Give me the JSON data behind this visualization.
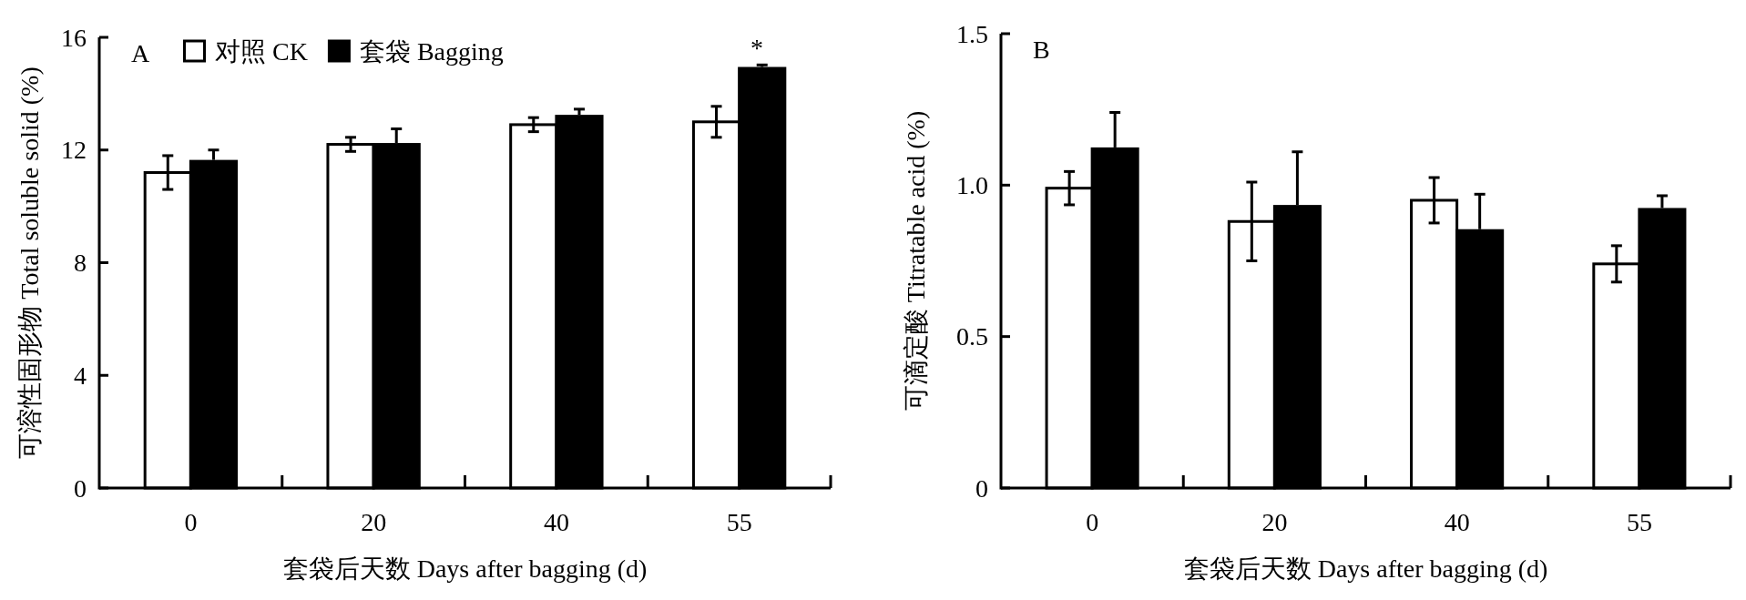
{
  "chart_data": [
    {
      "type": "bar",
      "title": "A",
      "xlabel": "套袋后天数 Days after bagging (d)",
      "ylabel": "可溶性固形物 Total soluble solid (%)",
      "categories": [
        "0",
        "20",
        "40",
        "55"
      ],
      "series": [
        {
          "name": "对照 CK",
          "color": "#ffffff",
          "values": [
            11.2,
            12.2,
            12.9,
            13.0
          ],
          "errors": [
            0.6,
            0.25,
            0.25,
            0.55
          ]
        },
        {
          "name": "套袋 Bagging",
          "color": "#000000",
          "values": [
            11.6,
            12.2,
            13.2,
            14.9
          ],
          "errors": [
            0.4,
            0.55,
            0.25,
            0.12
          ]
        }
      ],
      "ylim": [
        0,
        16
      ],
      "yticks": [
        0,
        4,
        8,
        12,
        16
      ],
      "legend": "top left",
      "annotations": [
        "*"
      ]
    },
    {
      "type": "bar",
      "title": "B",
      "xlabel": "套袋后天数 Days after bagging (d)",
      "ylabel": "可滴定酸 Titratable acid (%)",
      "categories": [
        "0",
        "20",
        "40",
        "55"
      ],
      "series": [
        {
          "color": "#ffffff",
          "values": [
            0.99,
            0.88,
            0.95,
            0.74
          ],
          "errors": [
            0.055,
            0.13,
            0.075,
            0.06
          ]
        },
        {
          "color": "#000000",
          "values": [
            1.12,
            0.93,
            0.85,
            0.92
          ],
          "errors": [
            0.12,
            0.18,
            0.12,
            0.045
          ]
        }
      ],
      "ylim": [
        0,
        1.5
      ],
      "yticks": [
        0,
        0.5,
        {
          "value": 1,
          "label": "1.0"
        },
        1.5
      ]
    }
  ]
}
